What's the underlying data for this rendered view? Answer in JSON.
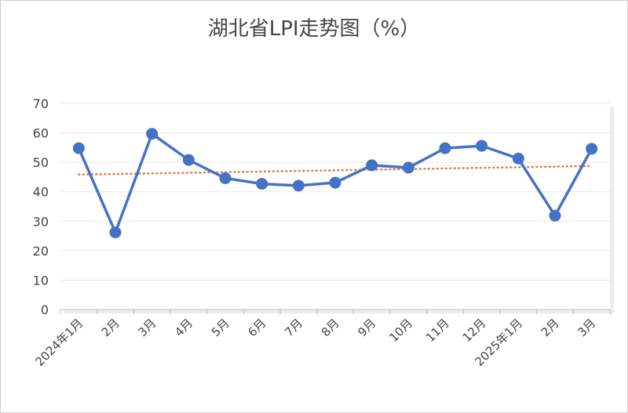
{
  "chart_data": {
    "type": "line",
    "title": "湖北省LPI走势图（%）",
    "categories": [
      "2024年1月",
      "2月",
      "3月",
      "4月",
      "5月",
      "6月",
      "7月",
      "8月",
      "9月",
      "10月",
      "11月",
      "12月",
      "2025年1月",
      "2月",
      "3月"
    ],
    "series": [
      {
        "values": [
          54.8,
          26.2,
          59.7,
          50.8,
          44.6,
          42.7,
          42.1,
          43.1,
          49.0,
          48.2,
          54.8,
          55.6,
          51.3,
          31.9,
          54.6
        ]
      }
    ],
    "trendline": {
      "type": "linear",
      "style": "dotted",
      "color": "#e07a4a"
    },
    "ylim": [
      0,
      70
    ],
    "yticks": [
      0,
      10,
      20,
      30,
      40,
      50,
      60,
      70
    ],
    "grid": true,
    "line_color": "#4472c4",
    "xlabel": "",
    "ylabel": ""
  }
}
